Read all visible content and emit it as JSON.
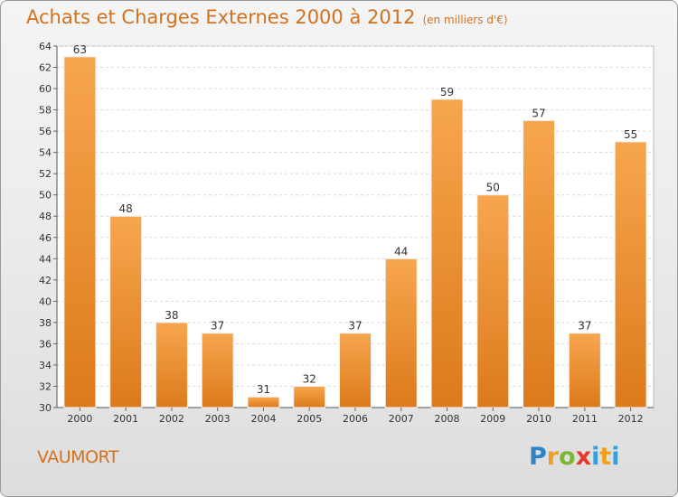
{
  "header": {
    "title": "Achats et Charges Externes 2000 à 2012",
    "unit": "(en milliers d'€)"
  },
  "footer": {
    "place": "VAUMORT",
    "logo": [
      "P",
      "r",
      "o",
      "x",
      "i",
      "t",
      "i"
    ]
  },
  "colors": {
    "accent": "#d2721f",
    "bar_light": "#f7a64e",
    "bar_dark": "#dc7a1c"
  },
  "chart_data": {
    "type": "bar",
    "title": "Achats et Charges Externes 2000 à 2012",
    "subtitle": "(en milliers d'€)",
    "categories": [
      "2000",
      "2001",
      "2002",
      "2003",
      "2004",
      "2005",
      "2006",
      "2007",
      "2008",
      "2009",
      "2010",
      "2011",
      "2012"
    ],
    "values": [
      63,
      48,
      38,
      37,
      31,
      32,
      37,
      44,
      59,
      50,
      57,
      37,
      55
    ],
    "ylim": [
      30,
      64
    ],
    "yticks": [
      30,
      32,
      34,
      36,
      38,
      40,
      42,
      44,
      46,
      48,
      50,
      52,
      54,
      56,
      58,
      60,
      62,
      64
    ],
    "grid": true,
    "xlabel": "",
    "ylabel": ""
  }
}
